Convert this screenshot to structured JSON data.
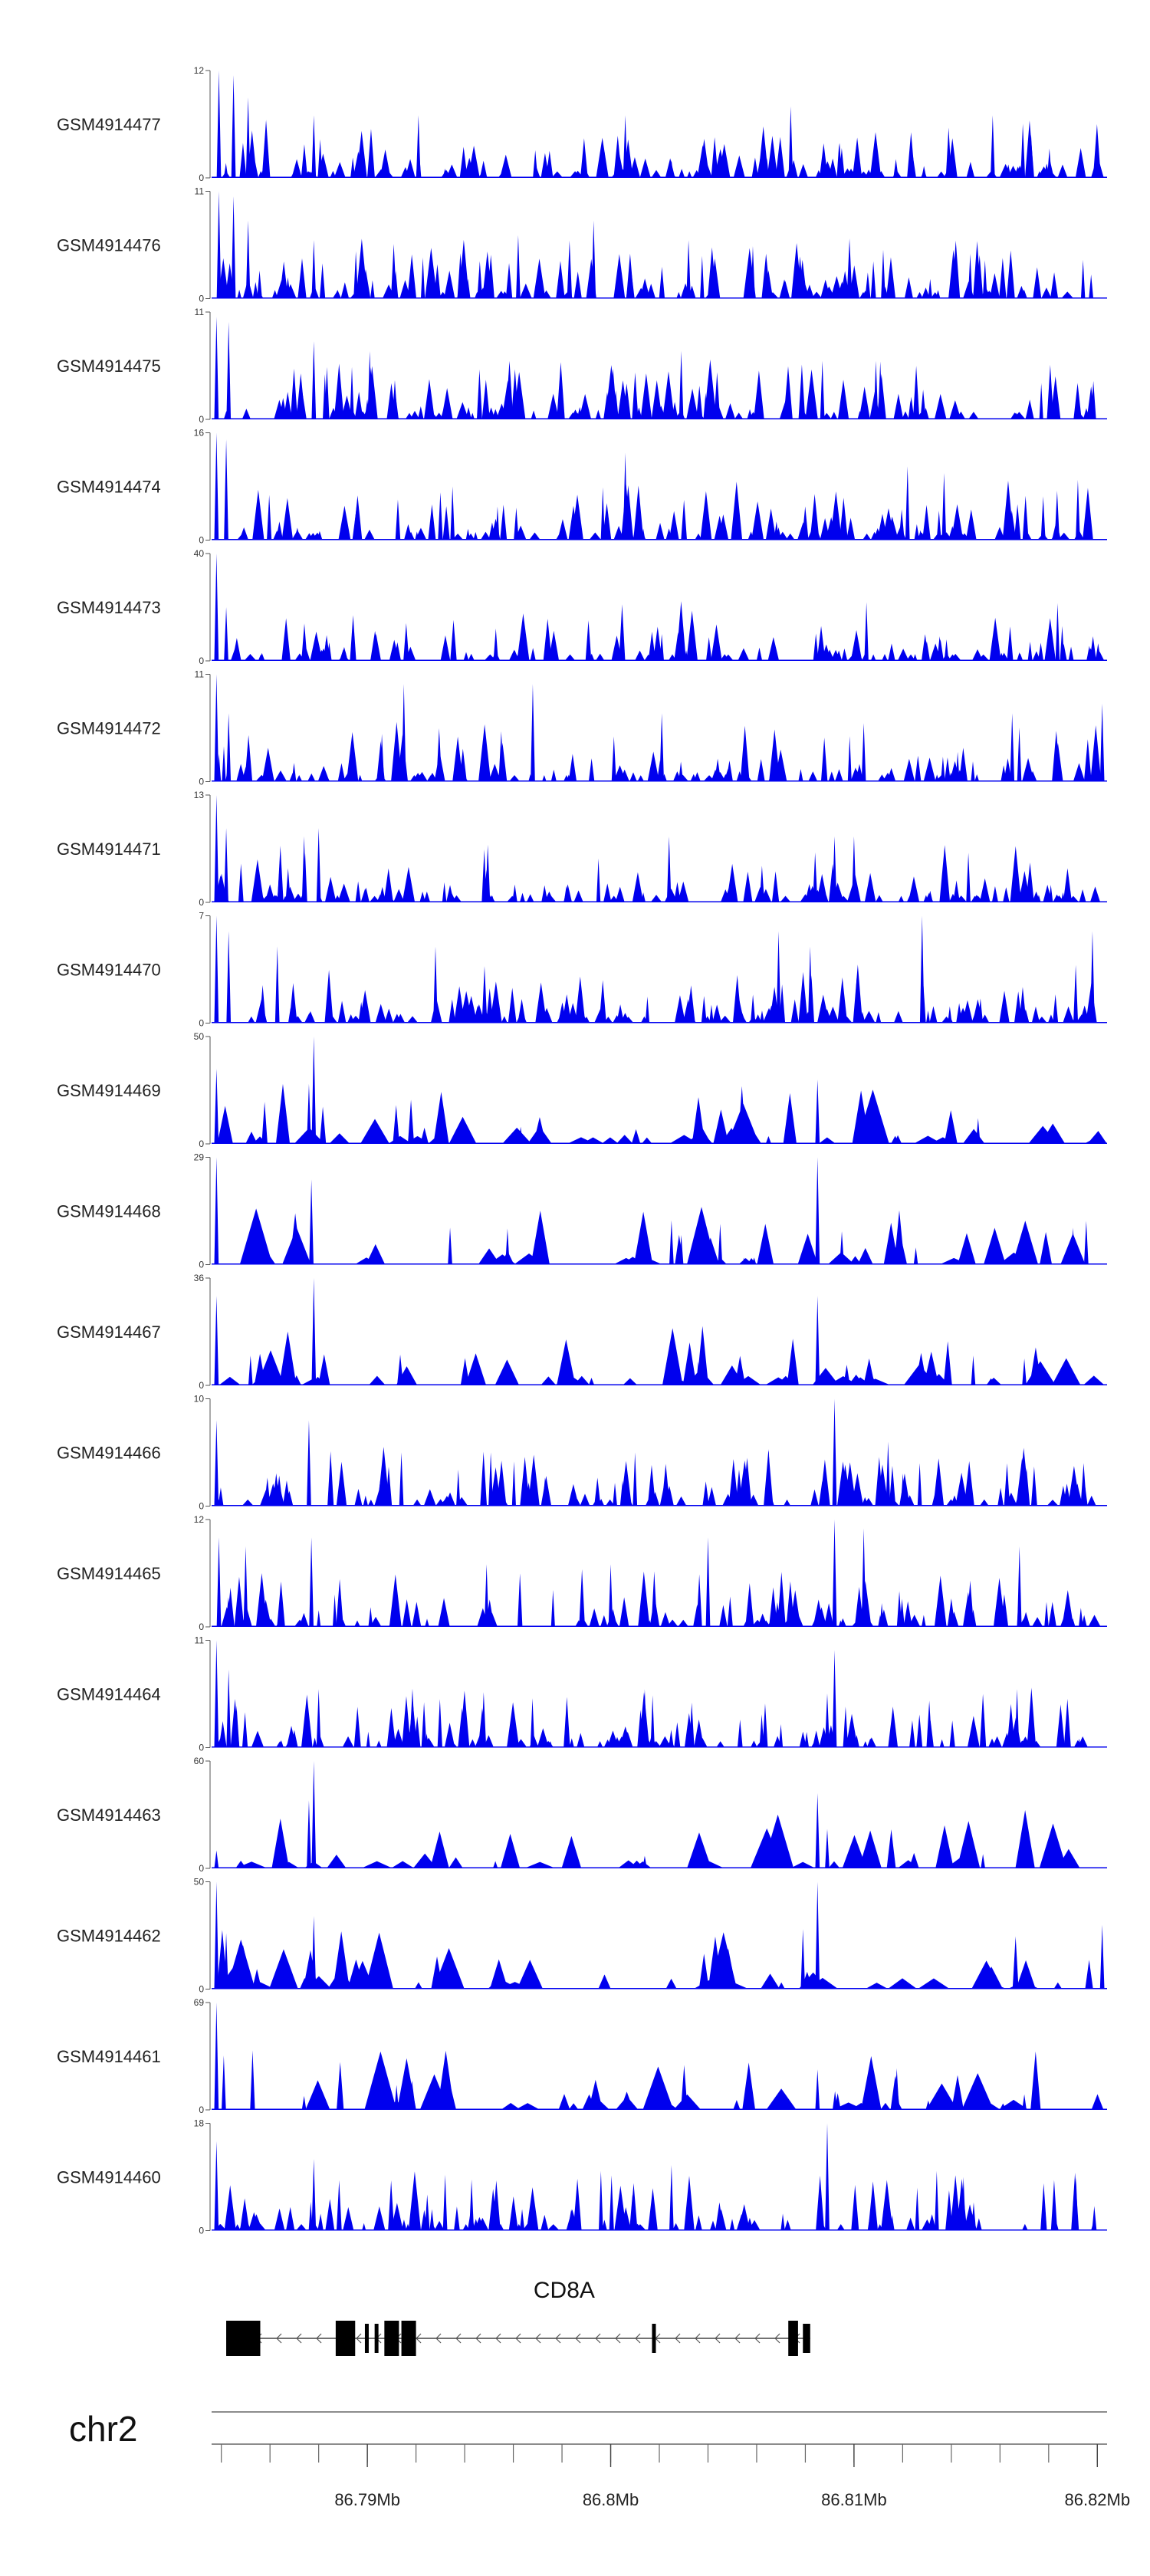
{
  "chart_data": {
    "type": "area",
    "title": "",
    "color": "#0000EE",
    "x_range_mb": [
      86.7836,
      86.8204
    ],
    "tracks": [
      {
        "name": "GSM4914477",
        "ymax": 12,
        "ymin": 0,
        "seed": 11,
        "density": 150,
        "peaks": [
          [
            86.7839,
            12
          ],
          [
            86.7845,
            11.5
          ],
          [
            86.7851,
            9
          ],
          [
            86.7878,
            7
          ],
          [
            86.7921,
            7
          ],
          [
            86.8006,
            7
          ],
          [
            86.8074,
            8
          ],
          [
            86.8157,
            7
          ]
        ]
      },
      {
        "name": "GSM4914476",
        "ymax": 11,
        "ymin": 0,
        "seed": 23,
        "density": 150,
        "peaks": [
          [
            86.7839,
            11
          ],
          [
            86.7845,
            10.5
          ],
          [
            86.7851,
            8
          ],
          [
            86.7878,
            6
          ],
          [
            86.7962,
            6.5
          ],
          [
            86.7993,
            8
          ],
          [
            86.8032,
            6
          ],
          [
            86.8112,
            5
          ]
        ]
      },
      {
        "name": "GSM4914475",
        "ymax": 11,
        "ymin": 0,
        "seed": 37,
        "density": 150,
        "peaks": [
          [
            86.7838,
            10.5
          ],
          [
            86.7843,
            10
          ],
          [
            86.7878,
            8
          ],
          [
            86.7901,
            7
          ],
          [
            86.8029,
            7
          ],
          [
            86.8087,
            6
          ],
          [
            86.8109,
            6
          ]
        ]
      },
      {
        "name": "GSM4914474",
        "ymax": 16,
        "ymin": 0,
        "seed": 41,
        "density": 130,
        "peaks": [
          [
            86.7838,
            16
          ],
          [
            86.7842,
            15
          ],
          [
            86.7935,
            8
          ],
          [
            86.8006,
            13
          ],
          [
            86.8122,
            11
          ],
          [
            86.8137,
            10
          ],
          [
            86.8192,
            9
          ]
        ]
      },
      {
        "name": "GSM4914473",
        "ymax": 40,
        "ymin": 0,
        "seed": 53,
        "density": 120,
        "peaks": [
          [
            86.7838,
            40
          ],
          [
            86.7842,
            20
          ],
          [
            86.7883,
            8
          ],
          [
            86.8021,
            10
          ],
          [
            86.8138,
            8
          ]
        ]
      },
      {
        "name": "GSM4914472",
        "ymax": 11,
        "ymin": 0,
        "seed": 61,
        "density": 120,
        "peaks": [
          [
            86.7838,
            11
          ],
          [
            86.7843,
            7
          ],
          [
            86.7915,
            10
          ],
          [
            86.7968,
            10
          ],
          [
            86.8021,
            7
          ],
          [
            86.8104,
            6
          ],
          [
            86.8165,
            7
          ],
          [
            86.8202,
            8
          ]
        ]
      },
      {
        "name": "GSM4914471",
        "ymax": 13,
        "ymin": 0,
        "seed": 71,
        "density": 130,
        "peaks": [
          [
            86.7838,
            13
          ],
          [
            86.7842,
            9
          ],
          [
            86.7874,
            8
          ],
          [
            86.788,
            9
          ],
          [
            86.8024,
            8
          ],
          [
            86.8092,
            8
          ],
          [
            86.81,
            8
          ],
          [
            86.8147,
            6
          ]
        ]
      },
      {
        "name": "GSM4914470",
        "ymax": 7,
        "ymin": 0,
        "seed": 83,
        "density": 140,
        "peaks": [
          [
            86.7838,
            7
          ],
          [
            86.7843,
            6
          ],
          [
            86.7863,
            5
          ],
          [
            86.7928,
            5
          ],
          [
            86.8069,
            6
          ],
          [
            86.8082,
            5
          ],
          [
            86.8128,
            7
          ],
          [
            86.8198,
            6
          ]
        ]
      },
      {
        "name": "GSM4914469",
        "ymax": 50,
        "ymin": 0,
        "seed": 97,
        "density": 55,
        "peaks": [
          [
            86.7838,
            35
          ],
          [
            86.7878,
            50
          ],
          [
            86.7876,
            28
          ],
          [
            86.7963,
            8
          ],
          [
            86.8085,
            30
          ],
          [
            86.8151,
            12
          ]
        ]
      },
      {
        "name": "GSM4914468",
        "ymax": 29,
        "ymin": 0,
        "seed": 103,
        "density": 45,
        "peaks": [
          [
            86.7838,
            29
          ],
          [
            86.7877,
            23
          ],
          [
            86.7934,
            10
          ],
          [
            86.8025,
            12
          ],
          [
            86.8029,
            8
          ],
          [
            86.8045,
            11
          ],
          [
            86.8085,
            29
          ],
          [
            86.8095,
            9
          ],
          [
            86.819,
            10
          ]
        ]
      },
      {
        "name": "GSM4914467",
        "ymax": 36,
        "ymin": 0,
        "seed": 109,
        "density": 55,
        "peaks": [
          [
            86.7838,
            30
          ],
          [
            86.7852,
            10
          ],
          [
            86.7878,
            36
          ],
          [
            86.8036,
            8
          ],
          [
            86.8085,
            30
          ],
          [
            86.8149,
            10
          ],
          [
            86.817,
            9
          ]
        ]
      },
      {
        "name": "GSM4914466",
        "ymax": 10,
        "ymin": 0,
        "seed": 127,
        "density": 140,
        "peaks": [
          [
            86.7838,
            8
          ],
          [
            86.7876,
            8
          ],
          [
            86.7914,
            5
          ],
          [
            86.801,
            5
          ],
          [
            86.8092,
            10
          ],
          [
            86.8114,
            6
          ],
          [
            86.8127,
            4
          ]
        ]
      },
      {
        "name": "GSM4914465",
        "ymax": 12,
        "ymin": 0,
        "seed": 131,
        "density": 120,
        "peaks": [
          [
            86.7839,
            10
          ],
          [
            86.785,
            9
          ],
          [
            86.7877,
            10
          ],
          [
            86.7949,
            7
          ],
          [
            86.8,
            7
          ],
          [
            86.804,
            10
          ],
          [
            86.8092,
            12
          ],
          [
            86.8104,
            11
          ],
          [
            86.8168,
            9
          ]
        ]
      },
      {
        "name": "GSM4914464",
        "ymax": 11,
        "ymin": 0,
        "seed": 149,
        "density": 140,
        "peaks": [
          [
            86.7838,
            11
          ],
          [
            86.7843,
            8
          ],
          [
            86.788,
            6
          ],
          [
            86.8014,
            6
          ],
          [
            86.8092,
            10
          ],
          [
            86.8167,
            6
          ]
        ]
      },
      {
        "name": "GSM4914463",
        "ymax": 60,
        "ymin": 0,
        "seed": 157,
        "density": 40,
        "peaks": [
          [
            86.7838,
            10
          ],
          [
            86.7878,
            60
          ],
          [
            86.7876,
            38
          ],
          [
            86.8014,
            7
          ],
          [
            86.8085,
            42
          ],
          [
            86.8089,
            22
          ],
          [
            86.8153,
            8
          ]
        ]
      },
      {
        "name": "GSM4914462",
        "ymax": 50,
        "ymin": 0,
        "seed": 163,
        "density": 55,
        "peaks": [
          [
            86.7838,
            50
          ],
          [
            86.7842,
            26
          ],
          [
            86.7878,
            34
          ],
          [
            86.7906,
            15
          ],
          [
            86.8079,
            28
          ],
          [
            86.8085,
            50
          ],
          [
            86.8202,
            30
          ]
        ]
      },
      {
        "name": "GSM4914461",
        "ymax": 69,
        "ymin": 0,
        "seed": 179,
        "density": 50,
        "peaks": [
          [
            86.7838,
            69
          ],
          [
            86.7841,
            35
          ],
          [
            86.7874,
            9
          ],
          [
            86.7912,
            16
          ],
          [
            86.8085,
            26
          ],
          [
            86.817,
            10
          ]
        ]
      },
      {
        "name": "GSM4914460",
        "ymax": 18,
        "ymin": 0,
        "seed": 191,
        "density": 110,
        "peaks": [
          [
            86.7838,
            15
          ],
          [
            86.7878,
            12
          ],
          [
            86.7996,
            10
          ],
          [
            86.8025,
            11
          ],
          [
            86.8089,
            18
          ],
          [
            86.8134,
            10
          ],
          [
            86.8145,
            9
          ]
        ]
      }
    ],
    "gene": {
      "name": "CD8A",
      "chrom_start_mb": 86.7842,
      "chrom_end_mb": 86.8082,
      "strand": "-",
      "exons_mb": [
        [
          86.7842,
          86.7856
        ],
        [
          86.7887,
          86.7895
        ],
        [
          86.7899,
          86.79
        ],
        [
          86.7903,
          86.7904
        ],
        [
          86.7907,
          86.7913
        ],
        [
          86.7914,
          86.792
        ],
        [
          86.8017,
          86.8018
        ],
        [
          86.8073,
          86.8077
        ],
        [
          86.8079,
          86.8082
        ]
      ]
    },
    "chromosome": "chr2",
    "x_tick_labels": [
      {
        "pos_mb": 86.79,
        "label": "86.79Mb"
      },
      {
        "pos_mb": 86.8,
        "label": "86.8Mb"
      },
      {
        "pos_mb": 86.81,
        "label": "86.81Mb"
      },
      {
        "pos_mb": 86.82,
        "label": "86.82Mb"
      }
    ],
    "minor_tick_step_mb": 0.002,
    "grid": false,
    "legend": "none"
  }
}
